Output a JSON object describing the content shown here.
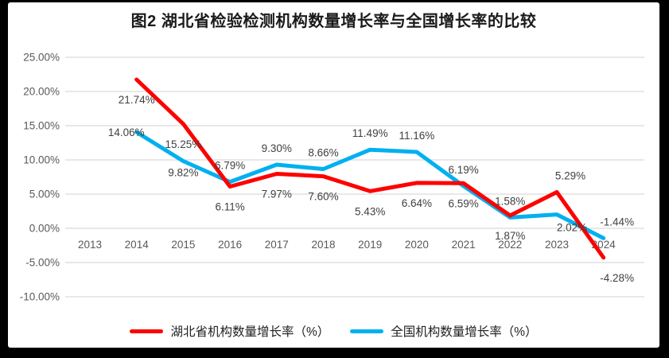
{
  "title": "图2 湖北省检验检测机构数量增长率与全国增长率的比较",
  "chart_data": {
    "type": "line",
    "title": "图2 湖北省检验检测机构数量增长率与全国增长率的比较",
    "categories": [
      "2013",
      "2014",
      "2015",
      "2016",
      "2017",
      "2018",
      "2019",
      "2020",
      "2021",
      "2022",
      "2023",
      "2024"
    ],
    "series": [
      {
        "name": "湖北省机构数量增长率（%）",
        "color": "#FE0000",
        "values": [
          null,
          21.74,
          15.25,
          6.11,
          7.97,
          7.6,
          5.43,
          6.64,
          6.59,
          1.87,
          5.29,
          -4.28
        ],
        "labels": [
          null,
          "21.74%",
          "15.25%",
          "6.11%",
          "7.97%",
          "7.60%",
          "5.43%",
          "6.64%",
          "6.59%",
          "1.87%",
          "5.29%",
          "-4.28%"
        ],
        "label_sides": [
          null,
          "below",
          "below",
          "below",
          "below",
          "below",
          "below",
          "below",
          "below",
          "below",
          "above-right",
          "below-right"
        ]
      },
      {
        "name": "全国机构数量增长率（%）",
        "color": "#00B0F0",
        "values": [
          null,
          14.06,
          9.82,
          6.79,
          9.3,
          8.66,
          11.49,
          11.16,
          6.19,
          1.58,
          2.02,
          -1.44
        ],
        "labels": [
          null,
          "14.06%",
          "9.82%",
          "6.79%",
          "9.30%",
          "8.66%",
          "11.49%",
          "11.16%",
          "6.19%",
          "1.58%",
          "2.02%",
          "-1.44%"
        ],
        "label_sides": [
          null,
          "left",
          "below-near",
          "above",
          "above",
          "above",
          "above",
          "above",
          "above",
          "above",
          "below-right-near",
          "above-right"
        ]
      }
    ],
    "y_ticks": [
      {
        "value": 25,
        "label": "25.00%"
      },
      {
        "value": 20,
        "label": "20.00%"
      },
      {
        "value": 15,
        "label": "15.00%"
      },
      {
        "value": 10,
        "label": "10.00%"
      },
      {
        "value": 5,
        "label": "5.00%"
      },
      {
        "value": 0,
        "label": "0.00%"
      },
      {
        "value": -5,
        "label": "-5.00%"
      },
      {
        "value": -10,
        "label": "-10.00%"
      }
    ],
    "ylim": [
      -10,
      25
    ],
    "grid": true,
    "legend_position": "bottom",
    "colors": {
      "gridline": "#D9D9D9",
      "axis_text": "#595959",
      "label_text": "#3f3f3f",
      "background": "#FFFFFF",
      "frame": "#000000"
    }
  }
}
